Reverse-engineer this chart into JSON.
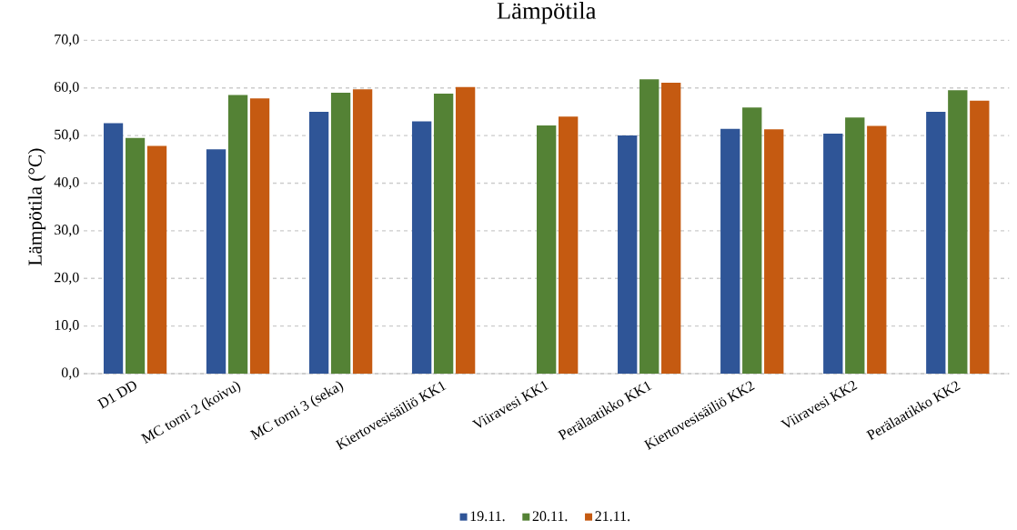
{
  "chart_data": {
    "type": "bar",
    "title": "Lämpötila",
    "ylabel": "Lämpötila (°C)",
    "categories": [
      "D1 DD",
      "MC torni 2 (koivu)",
      "MC torni 3 (seka)",
      "Kiertovesisäiliö KK1",
      "Viiravesi KK1",
      "Perälaatikko KK1",
      "Kiertovesisäiliö KK2",
      "Viiravesi KK2",
      "Perälaatikko KK2"
    ],
    "series": [
      {
        "name": "19.11.",
        "color": "#2f5597",
        "values": [
          52.6,
          47.1,
          55.0,
          53.0,
          null,
          50.0,
          51.4,
          50.4,
          55.0
        ]
      },
      {
        "name": "20.11.",
        "color": "#548235",
        "values": [
          49.5,
          58.5,
          59.0,
          58.8,
          52.1,
          61.8,
          55.9,
          53.8,
          59.5
        ]
      },
      {
        "name": "21.11.",
        "color": "#c55a11",
        "values": [
          47.8,
          57.8,
          59.7,
          60.2,
          54.0,
          61.1,
          51.3,
          52.0,
          57.3
        ]
      }
    ],
    "ylim": [
      0,
      70
    ],
    "yticks": [
      {
        "value": 0,
        "label": "0,0"
      },
      {
        "value": 10,
        "label": "10,0"
      },
      {
        "value": 20,
        "label": "20,0"
      },
      {
        "value": 30,
        "label": "30,0"
      },
      {
        "value": 40,
        "label": "40,0"
      },
      {
        "value": 50,
        "label": "50,0"
      },
      {
        "value": 60,
        "label": "60,0"
      },
      {
        "value": 70,
        "label": "70,0"
      }
    ],
    "grid": "y",
    "legend": "bottom"
  }
}
